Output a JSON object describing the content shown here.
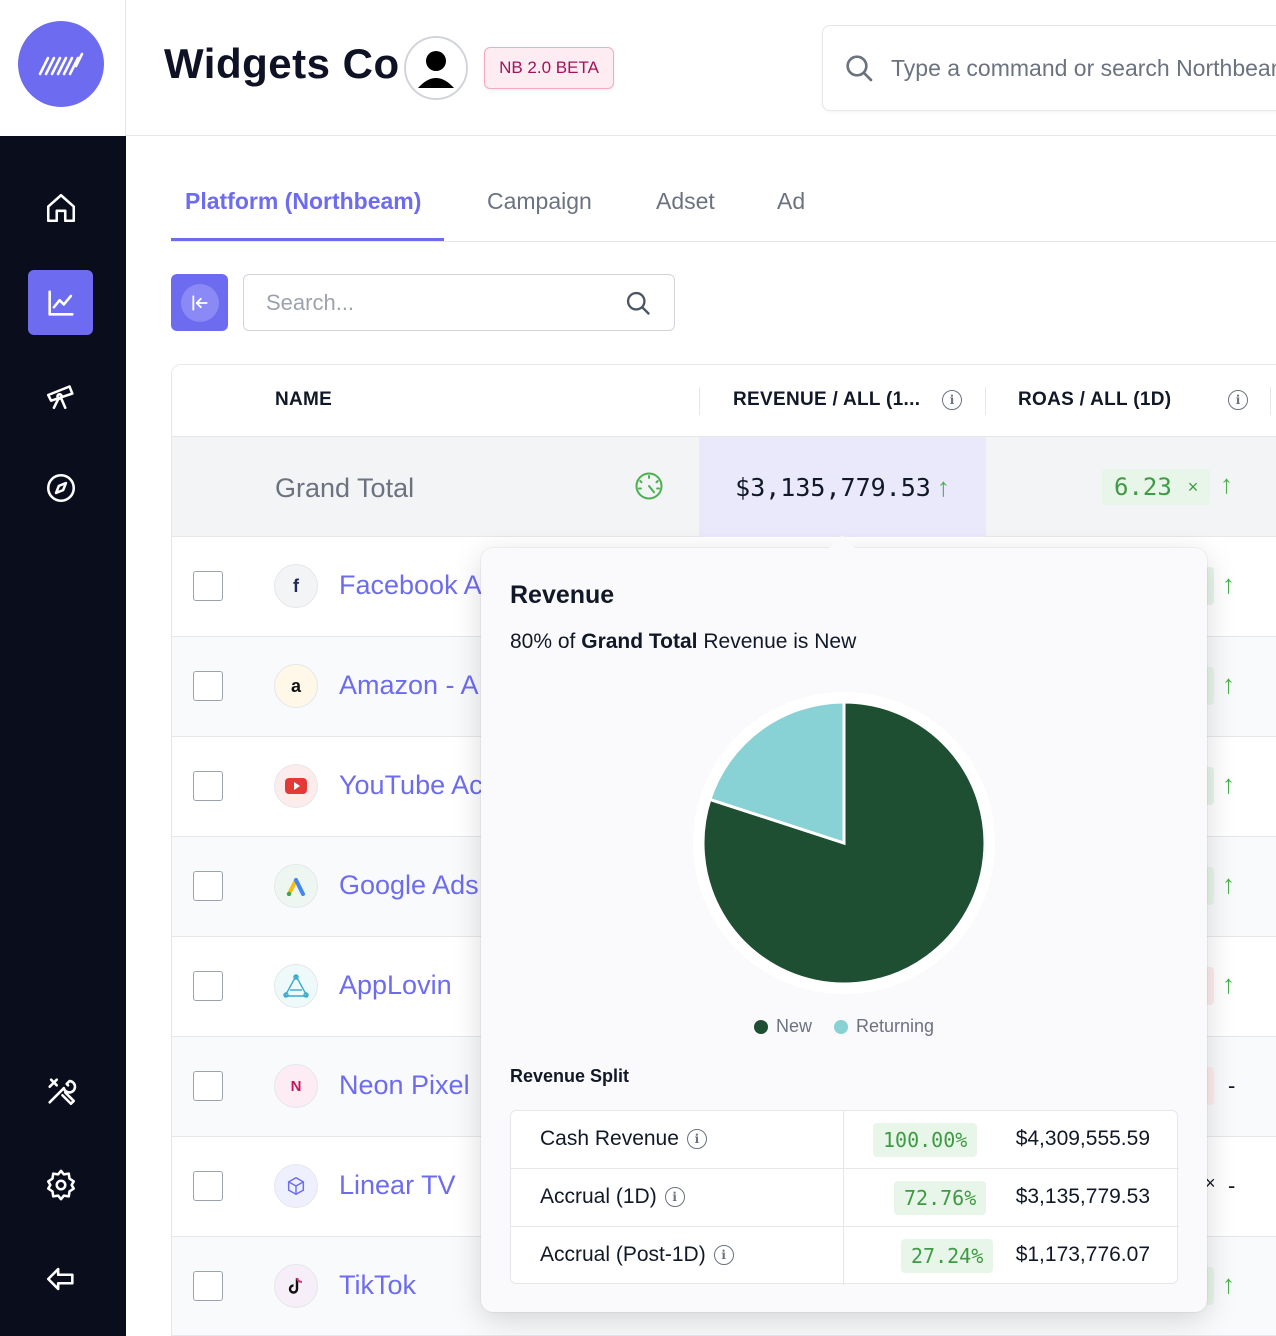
{
  "header": {
    "company": "Widgets Co",
    "beta_badge": "NB 2.0 BETA",
    "command_placeholder": "Type a command or search Northbeam"
  },
  "tabs": [
    "Platform (Northbeam)",
    "Campaign",
    "Adset",
    "Ad"
  ],
  "active_tab": "Platform (Northbeam)",
  "search": {
    "placeholder": "Search..."
  },
  "table": {
    "columns": [
      "NAME",
      "REVENUE / ALL (1...",
      "ROAS / ALL (1D)"
    ],
    "grand_total": {
      "label": "Grand Total",
      "revenue": "$3,135,779.53",
      "roas": "6.23",
      "roas_unit": "×"
    },
    "rows": [
      {
        "name": "Facebook A",
        "icon": "facebook-icon"
      },
      {
        "name": "Amazon - A",
        "icon": "amazon-icon"
      },
      {
        "name": "YouTube Ac",
        "icon": "youtube-icon"
      },
      {
        "name": "Google Ads",
        "icon": "google-ads-icon"
      },
      {
        "name": "AppLovin",
        "icon": "applovin-icon"
      },
      {
        "name": "Neon Pixel",
        "icon": "neon-pixel-icon"
      },
      {
        "name": "Linear TV",
        "icon": "linear-tv-icon"
      },
      {
        "name": "TikTok",
        "icon": "tiktok-icon"
      }
    ],
    "row_trailing": {
      "dash": "-",
      "x": "×"
    }
  },
  "popover": {
    "title": "Revenue",
    "subtitle_pct": "80% of",
    "subtitle_bold": "Grand Total",
    "subtitle_rest": "Revenue is New",
    "legend": [
      "New",
      "Returning"
    ],
    "split_title": "Revenue Split",
    "split_rows": [
      {
        "label": "Cash Revenue",
        "pct": "100.00%",
        "value": "$4,309,555.59"
      },
      {
        "label": "Accrual (1D)",
        "pct": "72.76%",
        "value": "$3,135,779.53"
      },
      {
        "label": "Accrual (Post-1D)",
        "pct": "27.24%",
        "value": "$1,173,776.07"
      }
    ]
  },
  "chart_data": {
    "type": "pie",
    "categories": [
      "New",
      "Returning"
    ],
    "values": [
      80,
      20
    ],
    "colors": [
      "#1f4f32",
      "#88d1d4"
    ]
  },
  "colors": {
    "accent": "#6d6cf0",
    "sidebar_bg": "#0a0d1c",
    "positive": "#3f9a44"
  }
}
